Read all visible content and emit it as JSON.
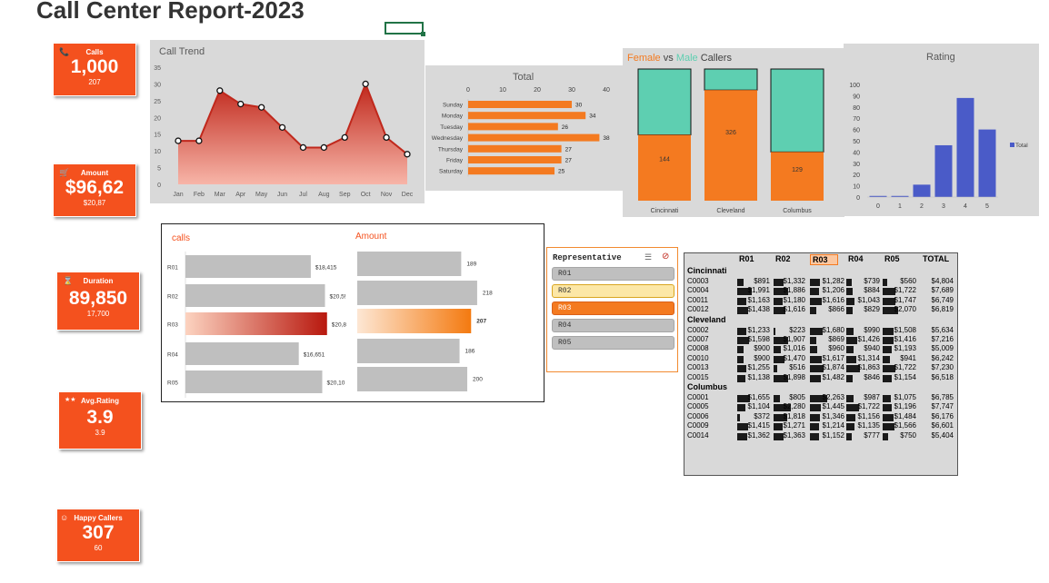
{
  "report_title": "Call Center Report-2023",
  "kpis": [
    {
      "id": "calls",
      "icon": "phone-icon",
      "glyph": "📞",
      "label": "Calls",
      "value": "1,000",
      "sub": "207"
    },
    {
      "id": "amount",
      "icon": "cart-icon",
      "glyph": "🛒",
      "label": "Amount",
      "value": "$96,62",
      "sub": "$20,87"
    },
    {
      "id": "duration",
      "icon": "hourglass-icon",
      "glyph": "⌛",
      "label": "Duration",
      "value": "89,850",
      "sub": "17,700"
    },
    {
      "id": "rating",
      "icon": "stars-icon",
      "glyph": "★★",
      "label": "Avg.Rating",
      "value": "3.9",
      "sub": "3.9"
    },
    {
      "id": "happy",
      "icon": "smiley-icon",
      "glyph": "☺",
      "label": "Happy Callers",
      "value": "307",
      "sub": "60"
    }
  ],
  "call_trend": {
    "title": "Call Trend",
    "chart_data": {
      "type": "area",
      "title": "Call Trend",
      "categories": [
        "Jan",
        "Feb",
        "Mar",
        "Apr",
        "May",
        "Jun",
        "Jul",
        "Aug",
        "Sep",
        "Oct",
        "Nov",
        "Dec"
      ],
      "values": [
        13,
        13,
        28,
        24,
        23,
        17,
        11,
        11,
        14,
        30,
        14,
        9
      ],
      "ylim": [
        0,
        35
      ],
      "yticks": [
        "0",
        "5",
        "10",
        "15",
        "20",
        "25",
        "30",
        "35"
      ],
      "grid": false,
      "color": "#c0281c"
    }
  },
  "total_by_day": {
    "title": "Total",
    "chart_data": {
      "type": "bar",
      "orientation": "horizontal",
      "title": "Total",
      "categories": [
        "Sunday",
        "Monday",
        "Tuesday",
        "Wednesday",
        "Thursday",
        "Friday",
        "Saturday"
      ],
      "values": [
        30,
        34,
        26,
        38,
        27,
        27,
        25
      ],
      "xlim": [
        0,
        40
      ],
      "xticks": [
        "0",
        "10",
        "20",
        "30",
        "40"
      ],
      "color": "#f47a20"
    }
  },
  "gender": {
    "title_female": "Female",
    "title_vs": " vs ",
    "title_male": "Male",
    "title_rest": " Callers",
    "female_color": "#f47a20",
    "male_color": "#5ecfb1",
    "chart_data": {
      "type": "bar",
      "stacked": "100%",
      "categories": [
        "Cincinnati",
        "Cleveland",
        "Columbus"
      ],
      "female_share": [
        0.5,
        0.84,
        0.37
      ],
      "labels": [
        "144",
        "326",
        "129"
      ]
    }
  },
  "rating_chart": {
    "title": "Rating",
    "legend": "Total",
    "chart_data": {
      "type": "bar",
      "title": "Rating",
      "categories": [
        "0",
        "1",
        "2",
        "3",
        "4",
        "5"
      ],
      "values": [
        1,
        1,
        11,
        46,
        88,
        60
      ],
      "ylim": [
        0,
        100
      ],
      "yticks": [
        "0",
        "10",
        "20",
        "30",
        "40",
        "50",
        "60",
        "70",
        "80",
        "90",
        "100"
      ],
      "series_name": "Total",
      "legend": "right",
      "color": "#4a5bc8"
    }
  },
  "rep_charts": {
    "calls_title": "calls",
    "amount_title": "Amount",
    "chart_data": [
      {
        "type": "bar",
        "orientation": "horizontal",
        "title": "calls",
        "categories": [
          "R01",
          "R02",
          "R03",
          "R04",
          "R05"
        ],
        "values": [
          18415,
          20500,
          20800,
          16651,
          20100
        ],
        "labels": [
          "$18,415",
          "$20,5!",
          "$20,8",
          "$16,651",
          "$20,10"
        ],
        "highlight": "R03"
      },
      {
        "type": "bar",
        "orientation": "horizontal",
        "title": "Amount",
        "categories": [
          "R01",
          "R02",
          "R03",
          "R04",
          "R05"
        ],
        "values": [
          189,
          218,
          207,
          186,
          200
        ],
        "labels": [
          "189",
          "218",
          "207",
          "186",
          "200"
        ],
        "highlight": "R03"
      }
    ]
  },
  "slicer": {
    "header": "Representative",
    "items": [
      {
        "label": "R01",
        "state": "normal"
      },
      {
        "label": "R02",
        "state": "hover"
      },
      {
        "label": "R03",
        "state": "selected"
      },
      {
        "label": "R04",
        "state": "normal"
      },
      {
        "label": "R05",
        "state": "normal"
      }
    ]
  },
  "pivot": {
    "headers": [
      "R01",
      "R02",
      "R03",
      "R04",
      "R05",
      "TOTAL"
    ],
    "highlight_col": "R03",
    "groups": [
      {
        "name": "Cincinnati",
        "rows": [
          {
            "id": "C0003",
            "vals": [
              "$891",
              "$1,332",
              "$1,282",
              "$739",
              "$560",
              "$4,804"
            ]
          },
          {
            "id": "C0004",
            "vals": [
              "$1,991",
              "$1,886",
              "$1,206",
              "$884",
              "$1,722",
              "$7,689"
            ]
          },
          {
            "id": "C0011",
            "vals": [
              "$1,163",
              "$1,180",
              "$1,616",
              "$1,043",
              "$1,747",
              "$6,749"
            ]
          },
          {
            "id": "C0012",
            "vals": [
              "$1,438",
              "$1,616",
              "$866",
              "$829",
              "$2,070",
              "$6,819"
            ]
          }
        ]
      },
      {
        "name": "Cleveland",
        "rows": [
          {
            "id": "C0002",
            "vals": [
              "$1,233",
              "$223",
              "$1,680",
              "$990",
              "$1,508",
              "$5,634"
            ]
          },
          {
            "id": "C0007",
            "vals": [
              "$1,598",
              "$1,907",
              "$869",
              "$1,426",
              "$1,416",
              "$7,216"
            ]
          },
          {
            "id": "C0008",
            "vals": [
              "$900",
              "$1,016",
              "$960",
              "$940",
              "$1,193",
              "$5,009"
            ]
          },
          {
            "id": "C0010",
            "vals": [
              "$900",
              "$1,470",
              "$1,617",
              "$1,314",
              "$941",
              "$6,242"
            ]
          },
          {
            "id": "C0013",
            "vals": [
              "$1,255",
              "$516",
              "$1,874",
              "$1,863",
              "$1,722",
              "$7,230"
            ]
          },
          {
            "id": "C0015",
            "vals": [
              "$1,138",
              "$1,898",
              "$1,482",
              "$846",
              "$1,154",
              "$6,518"
            ]
          }
        ]
      },
      {
        "name": "Columbus",
        "rows": [
          {
            "id": "C0001",
            "vals": [
              "$1,655",
              "$805",
              "$2,263",
              "$987",
              "$1,075",
              "$6,785"
            ]
          },
          {
            "id": "C0005",
            "vals": [
              "$1,104",
              "$2,280",
              "$1,445",
              "$1,722",
              "$1,196",
              "$7,747"
            ]
          },
          {
            "id": "C0006",
            "vals": [
              "$372",
              "$1,818",
              "$1,346",
              "$1,156",
              "$1,484",
              "$6,176"
            ]
          },
          {
            "id": "C0009",
            "vals": [
              "$1,415",
              "$1,271",
              "$1,214",
              "$1,135",
              "$1,566",
              "$6,601"
            ]
          },
          {
            "id": "C0014",
            "vals": [
              "$1,362",
              "$1,363",
              "$1,152",
              "$777",
              "$750",
              "$5,404"
            ]
          }
        ]
      }
    ]
  }
}
